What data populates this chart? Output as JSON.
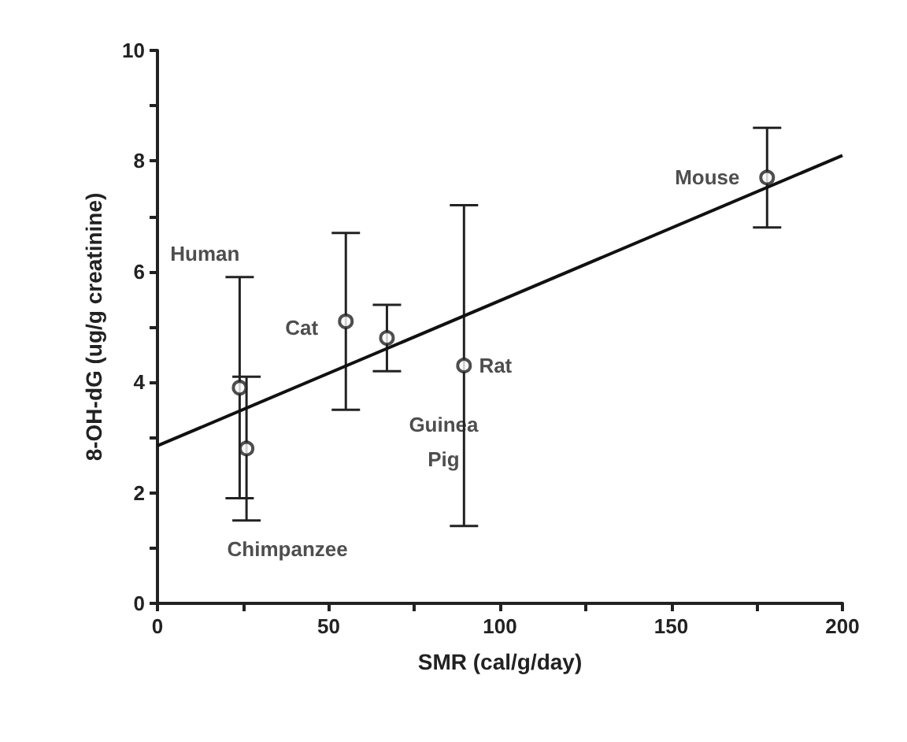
{
  "chart_data": {
    "type": "scatter",
    "xlabel": "SMR (cal/g/day)",
    "ylabel": "8-OH-dG (ug/g creatinine)",
    "xlim": [
      0,
      200
    ],
    "ylim": [
      0,
      10
    ],
    "xticks": [
      0,
      {
        "value": 25,
        "label": null
      },
      50,
      {
        "value": 75,
        "label": null
      },
      100,
      {
        "value": 125,
        "label": null
      },
      150,
      {
        "value": 175,
        "label": null
      },
      200
    ],
    "yticks": [
      0,
      {
        "value": 1,
        "label": null
      },
      2,
      {
        "value": 3,
        "label": null
      },
      4,
      {
        "value": 5,
        "label": null
      },
      6,
      {
        "value": 7,
        "label": null
      },
      8,
      {
        "value": 9,
        "label": null
      },
      10
    ],
    "grid": false,
    "marker": "circle",
    "series": [
      {
        "color": "#222222",
        "x": [
          24,
          26,
          55,
          67,
          89.5,
          178
        ],
        "values": [
          3.9,
          2.8,
          5.1,
          4.8,
          4.3,
          7.7
        ],
        "errors": [
          [
            1.9,
            5.9
          ],
          [
            1.5,
            4.1
          ],
          [
            3.5,
            6.7
          ],
          [
            4.2,
            5.4
          ],
          [
            1.4,
            7.2
          ],
          [
            6.8,
            8.6
          ]
        ]
      },
      {
        "type": "line",
        "color": "#111111",
        "x": [
          0,
          200
        ],
        "values": [
          2.85,
          8.1
        ],
        "marker": "none",
        "line_style": "solid"
      }
    ],
    "annotations": [
      "Human",
      "Chimpanzee",
      "Cat",
      "Guinea\nPig",
      "Rat",
      "Mouse"
    ]
  }
}
